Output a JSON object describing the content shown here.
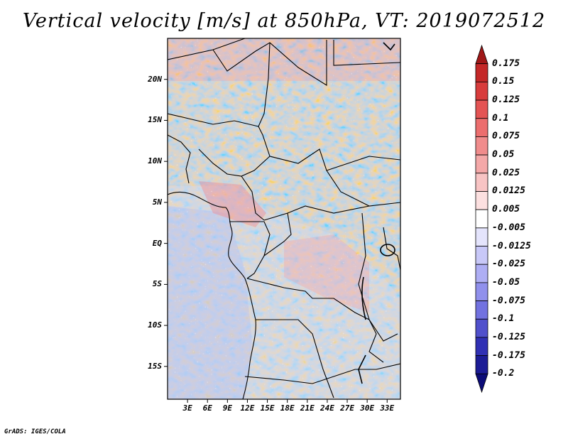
{
  "title": "Vertical velocity [m/s] at 850hPa, VT: 2019072512",
  "credit": "GrADS: IGES/COLA",
  "map": {
    "region": "Central Africa",
    "lat_range": [
      -19,
      25
    ],
    "lon_range": [
      0,
      35
    ],
    "lat_ticks": [
      {
        "value": 20,
        "label": "20N"
      },
      {
        "value": 15,
        "label": "15N"
      },
      {
        "value": 10,
        "label": "10N"
      },
      {
        "value": 5,
        "label": "5N"
      },
      {
        "value": 0,
        "label": "EQ"
      },
      {
        "value": -5,
        "label": "5S"
      },
      {
        "value": -10,
        "label": "10S"
      },
      {
        "value": -15,
        "label": "15S"
      }
    ],
    "lon_ticks": [
      {
        "value": 3,
        "label": "3E"
      },
      {
        "value": 6,
        "label": "6E"
      },
      {
        "value": 9,
        "label": "9E"
      },
      {
        "value": 12,
        "label": "12E"
      },
      {
        "value": 15,
        "label": "15E"
      },
      {
        "value": 18,
        "label": "18E"
      },
      {
        "value": 21,
        "label": "21E"
      },
      {
        "value": 24,
        "label": "24E"
      },
      {
        "value": 27,
        "label": "27E"
      },
      {
        "value": 30,
        "label": "30E"
      },
      {
        "value": 33,
        "label": "33E"
      }
    ]
  },
  "colorbar": {
    "labels": [
      "0.175",
      "0.15",
      "0.125",
      "0.1",
      "0.075",
      "0.05",
      "0.025",
      "0.0125",
      "0.005",
      "-0.005",
      "-0.0125",
      "-0.025",
      "-0.05",
      "-0.075",
      "-0.1",
      "-0.125",
      "-0.175",
      "-0.2"
    ],
    "colors": [
      "#a01818",
      "#c42828",
      "#d83c3c",
      "#e45454",
      "#ec6e6e",
      "#f08c8c",
      "#f4a8a8",
      "#f8c4c4",
      "#fce0e0",
      "#ffffff",
      "#e4e4fc",
      "#c8c8f8",
      "#aeaef4",
      "#9090ec",
      "#7272e0",
      "#5050cc",
      "#3030b4",
      "#1c1c96",
      "#0c0c78"
    ]
  }
}
